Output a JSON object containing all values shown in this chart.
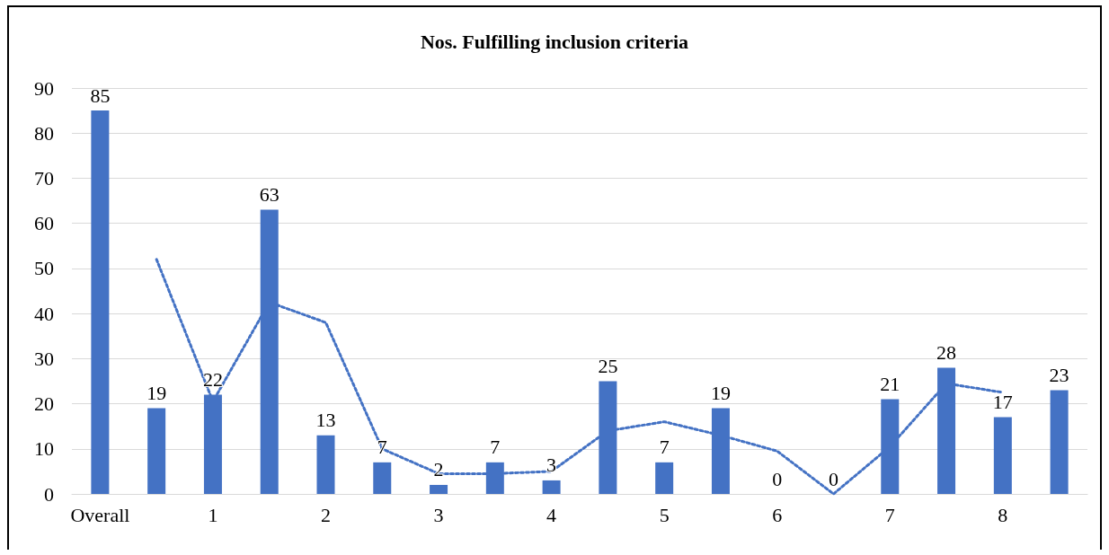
{
  "chart_data": {
    "type": "bar",
    "title": "Nos. Fulfilling inclusion criteria",
    "categories": [
      "Overall",
      null,
      "1",
      null,
      "2",
      null,
      "3",
      null,
      "4",
      null,
      "5",
      null,
      "6",
      null,
      "7",
      null,
      "8",
      null
    ],
    "series": [
      {
        "color": "#4472c4",
        "values": [
          85,
          19,
          22,
          63,
          13,
          7,
          2,
          7,
          3,
          25,
          7,
          19,
          0,
          0,
          21,
          28,
          17,
          23
        ],
        "value_labels": [
          "85",
          "19",
          "22",
          "63",
          "13",
          "7",
          "2",
          "7",
          "3",
          "25",
          "7",
          "19",
          "0",
          "0",
          "21",
          "28",
          "17",
          "23"
        ]
      },
      {
        "type": "line",
        "color": "#4472c4",
        "line_style": "dotted",
        "marker": "none",
        "values": [
          null,
          52,
          20.5,
          42.5,
          38,
          10,
          4.5,
          4.5,
          5,
          14,
          16,
          13,
          9.5,
          0,
          10.5,
          24.5,
          22.5,
          null
        ]
      }
    ],
    "ylim": [
      0,
      90
    ],
    "yticks": [
      0,
      10,
      20,
      30,
      40,
      50,
      60,
      70,
      80,
      90
    ],
    "grid": "y"
  }
}
